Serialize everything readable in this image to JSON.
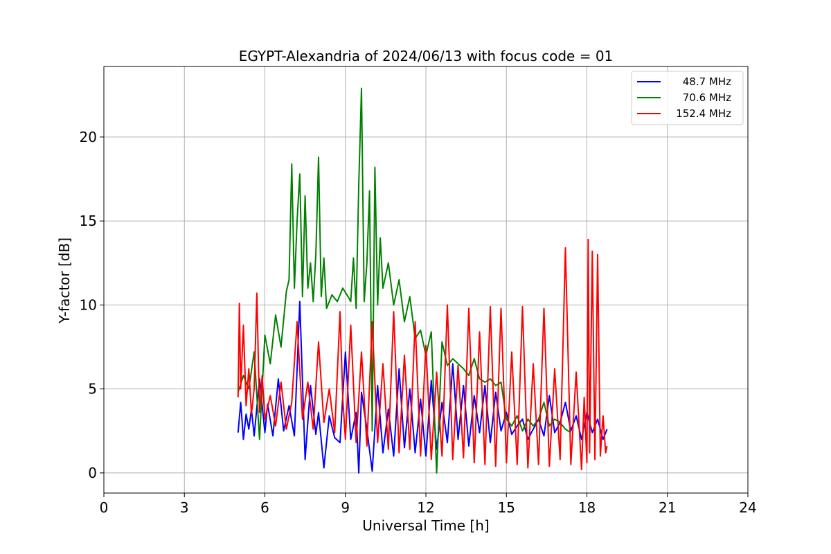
{
  "chart_data": {
    "type": "line",
    "title": "EGYPT-Alexandria of 2024/06/13 with focus code = 01",
    "xlabel": "Universal Time [h]",
    "ylabel": "Y-factor [dB]",
    "xlim": [
      0,
      24
    ],
    "ylim": [
      -1.2,
      24.2
    ],
    "xticks": [
      0,
      3,
      6,
      9,
      12,
      15,
      18,
      21,
      24
    ],
    "xtick_labels": [
      "0",
      "3",
      "6",
      "9",
      "12",
      "15",
      "18",
      "21",
      "24"
    ],
    "yticks": [
      0,
      5,
      10,
      15,
      20
    ],
    "ytick_labels": [
      "0",
      "5",
      "10",
      "15",
      "20"
    ],
    "grid": true,
    "legend_position": "top-right",
    "series": [
      {
        "name": "48.7 MHz",
        "color": "#0000ff",
        "x": [
          5.0,
          5.1,
          5.2,
          5.3,
          5.4,
          5.5,
          5.6,
          5.8,
          6.0,
          6.1,
          6.3,
          6.5,
          6.7,
          6.9,
          7.1,
          7.3,
          7.5,
          7.7,
          7.9,
          8.0,
          8.2,
          8.4,
          8.6,
          8.8,
          9.0,
          9.2,
          9.4,
          9.5,
          9.6,
          9.8,
          10.0,
          10.2,
          10.4,
          10.6,
          10.8,
          11.0,
          11.2,
          11.4,
          11.6,
          11.8,
          12.0,
          12.2,
          12.4,
          12.6,
          12.8,
          13.0,
          13.2,
          13.4,
          13.6,
          13.8,
          14.0,
          14.2,
          14.4,
          14.6,
          14.8,
          15.0,
          15.2,
          15.4,
          15.6,
          15.8,
          16.0,
          16.2,
          16.4,
          16.6,
          16.8,
          17.0,
          17.2,
          17.4,
          17.6,
          17.8,
          18.0,
          18.2,
          18.4,
          18.6,
          18.75
        ],
        "y": [
          2.4,
          4.2,
          2.0,
          3.5,
          2.6,
          3.8,
          2.2,
          5.6,
          2.4,
          4.1,
          2.2,
          5.6,
          2.5,
          4.0,
          2.2,
          10.2,
          0.8,
          5.2,
          2.3,
          3.6,
          0.3,
          3.4,
          2.1,
          1.8,
          7.2,
          2.0,
          3.6,
          0.0,
          4.8,
          2.6,
          0.1,
          5.2,
          1.2,
          3.8,
          1.0,
          6.2,
          1.5,
          5.0,
          1.2,
          4.4,
          1.0,
          5.5,
          1.4,
          4.2,
          1.8,
          6.5,
          2.0,
          5.2,
          1.6,
          4.6,
          2.4,
          5.2,
          1.8,
          4.8,
          2.5,
          3.6,
          2.3,
          2.8,
          3.2,
          2.0,
          2.6,
          3.2,
          2.2,
          4.6,
          2.4,
          3.0,
          4.2,
          2.5,
          3.4,
          2.0,
          3.6,
          2.4,
          3.2,
          2.0,
          2.6
        ]
      },
      {
        "name": "70.6 MHz",
        "color": "#008000",
        "x": [
          5.0,
          5.2,
          5.4,
          5.6,
          5.8,
          6.0,
          6.2,
          6.4,
          6.6,
          6.8,
          6.9,
          7.0,
          7.1,
          7.2,
          7.3,
          7.4,
          7.5,
          7.6,
          7.7,
          7.8,
          7.9,
          8.0,
          8.1,
          8.2,
          8.3,
          8.5,
          8.7,
          8.9,
          9.1,
          9.2,
          9.3,
          9.4,
          9.5,
          9.6,
          9.7,
          9.8,
          9.9,
          10.0,
          10.1,
          10.2,
          10.3,
          10.4,
          10.6,
          10.8,
          11.0,
          11.2,
          11.4,
          11.6,
          11.8,
          12.0,
          12.2,
          12.4,
          12.6,
          12.8,
          13.0,
          13.2,
          13.4,
          13.6,
          13.8,
          14.0,
          14.2,
          14.4,
          14.6,
          14.8,
          15.0,
          15.2,
          15.4,
          15.6,
          15.8,
          16.0,
          16.2,
          16.4,
          16.6,
          16.8,
          17.0,
          17.2,
          17.4
        ],
        "y": [
          4.8,
          5.8,
          5.0,
          7.2,
          2.0,
          8.2,
          6.5,
          9.4,
          7.5,
          10.8,
          11.5,
          18.4,
          11.0,
          15.0,
          17.8,
          10.5,
          16.5,
          11.0,
          12.5,
          10.2,
          13.0,
          18.8,
          10.5,
          12.8,
          9.8,
          10.6,
          10.2,
          11.0,
          10.5,
          10.2,
          12.8,
          9.8,
          17.2,
          22.9,
          10.2,
          12.5,
          16.8,
          2.5,
          18.2,
          10.0,
          14.0,
          11.0,
          12.5,
          10.0,
          11.5,
          9.0,
          10.5,
          8.0,
          8.5,
          7.0,
          8.4,
          0.0,
          7.8,
          6.4,
          6.8,
          6.5,
          6.2,
          5.8,
          6.8,
          5.6,
          5.4,
          5.6,
          5.2,
          5.4,
          3.2,
          2.8,
          3.4,
          2.5,
          3.2,
          2.8,
          3.2,
          4.2,
          2.8,
          3.2,
          3.0,
          2.6,
          2.4
        ]
      },
      {
        "name": "152.4 MHz",
        "color": "#ff0000",
        "x": [
          5.0,
          5.05,
          5.1,
          5.2,
          5.3,
          5.4,
          5.5,
          5.6,
          5.7,
          5.8,
          5.9,
          6.0,
          6.2,
          6.4,
          6.6,
          6.8,
          7.0,
          7.2,
          7.4,
          7.6,
          7.8,
          8.0,
          8.2,
          8.4,
          8.6,
          8.8,
          8.9,
          9.0,
          9.2,
          9.4,
          9.6,
          9.8,
          10.0,
          10.2,
          10.4,
          10.6,
          10.8,
          11.0,
          11.2,
          11.4,
          11.6,
          11.8,
          12.0,
          12.2,
          12.4,
          12.6,
          12.8,
          13.0,
          13.2,
          13.4,
          13.6,
          13.8,
          14.0,
          14.2,
          14.4,
          14.6,
          14.8,
          15.0,
          15.2,
          15.4,
          15.6,
          15.8,
          16.0,
          16.2,
          16.4,
          16.6,
          16.8,
          17.0,
          17.2,
          17.4,
          17.6,
          17.8,
          17.9,
          18.0,
          18.05,
          18.1,
          18.2,
          18.3,
          18.4,
          18.5,
          18.6,
          18.7,
          18.75
        ],
        "y": [
          4.5,
          10.1,
          5.0,
          8.8,
          4.0,
          6.2,
          3.5,
          5.0,
          10.7,
          3.6,
          5.8,
          3.2,
          4.6,
          2.8,
          5.4,
          2.6,
          4.2,
          9.0,
          3.2,
          5.4,
          2.6,
          7.8,
          3.0,
          5.0,
          2.4,
          9.6,
          4.5,
          2.0,
          8.8,
          1.8,
          7.2,
          1.6,
          9.0,
          1.8,
          6.5,
          1.4,
          9.6,
          1.2,
          7.0,
          1.4,
          9.0,
          1.0,
          7.6,
          0.8,
          6.0,
          1.0,
          10.0,
          0.8,
          6.4,
          0.9,
          9.8,
          0.6,
          8.4,
          0.5,
          9.9,
          0.4,
          9.8,
          0.6,
          7.2,
          0.5,
          9.9,
          0.3,
          6.5,
          0.5,
          9.8,
          0.4,
          6.2,
          0.8,
          13.4,
          0.5,
          6.0,
          0.2,
          4.5,
          0.6,
          13.9,
          1.2,
          13.2,
          0.8,
          13.0,
          1.0,
          3.4,
          1.2,
          1.6
        ]
      }
    ]
  }
}
